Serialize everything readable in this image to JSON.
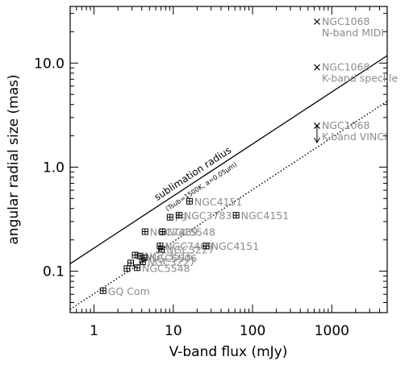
{
  "chart_data": {
    "type": "scatter",
    "xlabel": "V-band flux (mJy)",
    "ylabel": "angular radial size (mas)",
    "xscale": "log",
    "yscale": "log",
    "xlim": [
      0.5,
      5000
    ],
    "ylim": [
      0.04,
      35
    ],
    "x_tick_labels": [
      "1",
      "10",
      "100",
      "1000"
    ],
    "y_tick_labels": [
      "0.1",
      "1.0",
      "10.0"
    ],
    "grid": false,
    "lines": [
      {
        "style": "solid",
        "label": "sublimation radius",
        "sublabel": "(Tsub=1500K, a=0.05μm)",
        "x": [
          0.5,
          5000
        ],
        "y": [
          0.118,
          11.8
        ]
      },
      {
        "style": "dotted",
        "x": [
          0.5,
          5000
        ],
        "y": [
          0.043,
          4.3
        ]
      }
    ],
    "points": [
      {
        "x": 1.3,
        "y": 0.065,
        "label": "GQ Com"
      },
      {
        "x": 2.6,
        "y": 0.106
      },
      {
        "x": 2.9,
        "y": 0.12
      },
      {
        "x": 3.3,
        "y": 0.143
      },
      {
        "x": 3.5,
        "y": 0.108,
        "label": "NGC5548"
      },
      {
        "x": 3.8,
        "y": 0.14,
        "label": "NGC3516"
      },
      {
        "x": 4.1,
        "y": 0.123,
        "label": "NGC3227"
      },
      {
        "x": 4.3,
        "y": 0.135,
        "label": "NGC5506"
      },
      {
        "x": 4.4,
        "y": 0.24,
        "label": "NGC7469"
      },
      {
        "x": 6.8,
        "y": 0.175,
        "label": "NGC7469"
      },
      {
        "x": 7.1,
        "y": 0.162,
        "label": "NGC3227"
      },
      {
        "x": 7.3,
        "y": 0.24,
        "label": "NGC5548"
      },
      {
        "x": 9.1,
        "y": 0.33,
        "label": "F9"
      },
      {
        "x": 11.8,
        "y": 0.345,
        "label": "NGC3783"
      },
      {
        "x": 16,
        "y": 0.47,
        "label": "NGC4151"
      },
      {
        "x": 26,
        "y": 0.175,
        "label": "NGC4151"
      },
      {
        "x": 62,
        "y": 0.345,
        "label": "NGC4151"
      }
    ],
    "literature": [
      {
        "x": 650,
        "y": 25,
        "label1": "NGC1068",
        "label2": "N-band MIDI"
      },
      {
        "x": 650,
        "y": 9.1,
        "label1": "NGC1068",
        "label2": "K-band speckle"
      },
      {
        "x": 650,
        "y": 2.5,
        "label1": "NGC1068",
        "label2": "K-band VINCI",
        "upper_limit": true
      }
    ]
  }
}
